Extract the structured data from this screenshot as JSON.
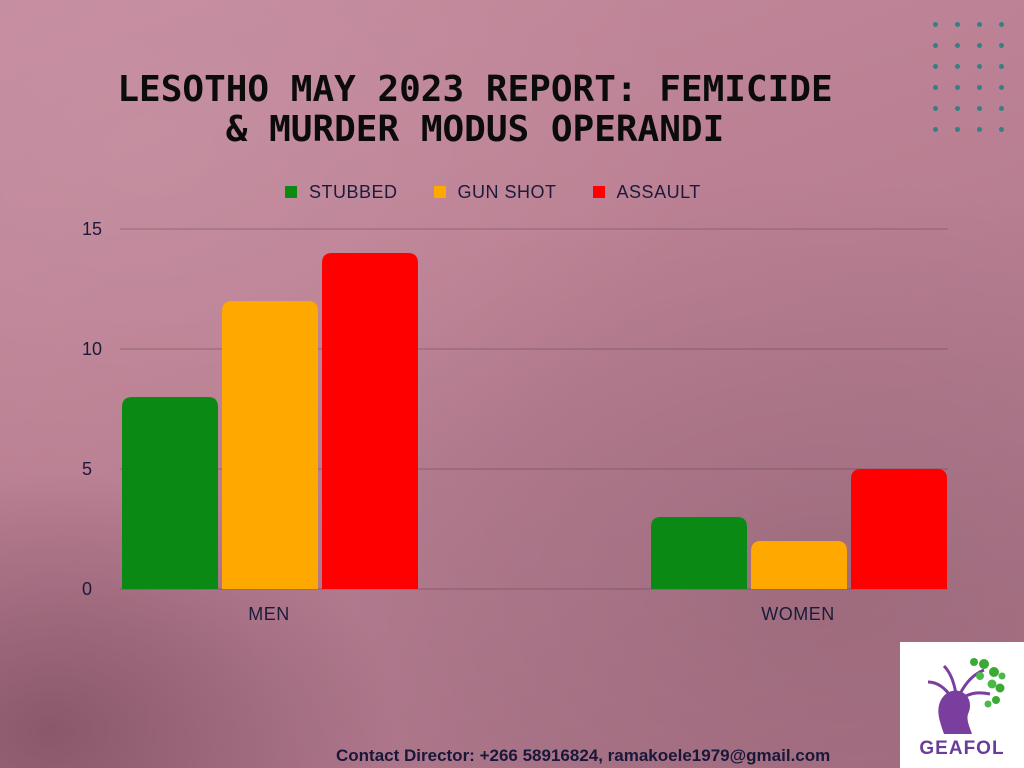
{
  "title_lines": [
    "LESOTHO MAY 2023 REPORT: FEMICIDE",
    "& MURDER MODUS OPERANDI"
  ],
  "contact": "Contact Director: +266 58916824, ramakoele1979@gmail.com",
  "logo": {
    "name": "GEAFOL"
  },
  "colors": {
    "stubbed": "#0a8a14",
    "gun_shot": "#ffa800",
    "assault": "#ff0000",
    "axis_text": "#1b1b3a",
    "dots": "#1f7f80"
  },
  "chart_data": {
    "type": "bar",
    "categories": [
      "MEN",
      "WOMEN"
    ],
    "series": [
      {
        "name": "STUBBED",
        "values": [
          8,
          3
        ],
        "color": "#0a8a14"
      },
      {
        "name": "GUN SHOT",
        "values": [
          12,
          2
        ],
        "color": "#ffa800"
      },
      {
        "name": "ASSAULT",
        "values": [
          14,
          5
        ],
        "color": "#ff0000"
      }
    ],
    "ylim": [
      0,
      15
    ],
    "yticks": [
      0,
      5,
      10,
      15
    ],
    "grid": true,
    "legend_position": "top",
    "title": "LESOTHO MAY 2023 REPORT: FEMICIDE & MURDER MODUS OPERANDI",
    "xlabel": "",
    "ylabel": ""
  }
}
